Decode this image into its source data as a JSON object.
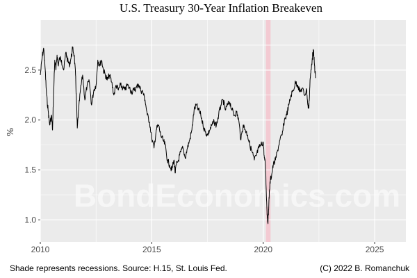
{
  "chart_data": {
    "type": "line",
    "title": "U.S. Treasury 30-Year Inflation Breakeven",
    "xlabel": "",
    "ylabel": "%",
    "xlim": [
      2010.0,
      2026.4
    ],
    "ylim": [
      0.78,
      3.0
    ],
    "x_ticks": [
      2010,
      2015,
      2020,
      2025
    ],
    "x_tick_labels": [
      "2010",
      "2015",
      "2020",
      "2025"
    ],
    "y_ticks": [
      1.0,
      1.5,
      2.0,
      2.5
    ],
    "y_tick_labels": [
      "1.0",
      "1.5",
      "2.0",
      "2.5"
    ],
    "grid": true,
    "background_color": "#ebebeb",
    "line_color": "#000000",
    "recession_color": "#f4c6cf",
    "recession_shading": [
      {
        "start": 2020.12,
        "end": 2020.33
      }
    ],
    "series": [
      {
        "x": [
          2010.0,
          2010.08,
          2010.15,
          2010.22,
          2010.28,
          2010.35,
          2010.42,
          2010.5,
          2010.55,
          2010.6,
          2010.65,
          2010.7,
          2010.75,
          2010.8,
          2010.87,
          2010.95,
          2011.05,
          2011.15,
          2011.22,
          2011.3,
          2011.38,
          2011.45,
          2011.52,
          2011.58,
          2011.62,
          2011.66,
          2011.72,
          2011.8,
          2011.9,
          2012.0,
          2012.1,
          2012.2,
          2012.3,
          2012.4,
          2012.5,
          2012.58,
          2012.66,
          2012.75,
          2012.83,
          2012.92,
          2013.0,
          2013.1,
          2013.2,
          2013.3,
          2013.4,
          2013.5,
          2013.6,
          2013.7,
          2013.8,
          2013.9,
          2014.0,
          2014.1,
          2014.2,
          2014.3,
          2014.4,
          2014.5,
          2014.6,
          2014.7,
          2014.8,
          2014.9,
          2015.0,
          2015.1,
          2015.2,
          2015.3,
          2015.4,
          2015.5,
          2015.6,
          2015.7,
          2015.8,
          2015.9,
          2016.0,
          2016.05,
          2016.1,
          2016.2,
          2016.3,
          2016.4,
          2016.5,
          2016.6,
          2016.7,
          2016.8,
          2016.9,
          2017.0,
          2017.1,
          2017.2,
          2017.3,
          2017.4,
          2017.5,
          2017.6,
          2017.7,
          2017.8,
          2017.9,
          2018.0,
          2018.1,
          2018.2,
          2018.3,
          2018.4,
          2018.5,
          2018.6,
          2018.7,
          2018.8,
          2018.9,
          2019.0,
          2019.1,
          2019.2,
          2019.3,
          2019.4,
          2019.5,
          2019.6,
          2019.7,
          2019.8,
          2019.9,
          2020.0,
          2020.05,
          2020.1,
          2020.15,
          2020.18,
          2020.21,
          2020.24,
          2020.28,
          2020.32,
          2020.38,
          2020.45,
          2020.55,
          2020.65,
          2020.75,
          2020.85,
          2020.95,
          2021.05,
          2021.15,
          2021.25,
          2021.35,
          2021.45,
          2021.55,
          2021.65,
          2021.75,
          2021.85,
          2021.95,
          2022.0,
          2022.05,
          2022.1,
          2022.15,
          2022.2,
          2022.25,
          2022.3,
          2022.35
        ],
        "y": [
          2.45,
          2.62,
          2.72,
          2.5,
          2.25,
          2.1,
          1.95,
          2.05,
          1.9,
          2.3,
          2.6,
          2.5,
          2.65,
          2.55,
          2.62,
          2.6,
          2.5,
          2.68,
          2.6,
          2.55,
          2.62,
          2.72,
          2.65,
          2.45,
          2.2,
          1.92,
          2.1,
          2.3,
          2.45,
          2.2,
          2.35,
          2.38,
          2.15,
          2.3,
          2.35,
          2.6,
          2.55,
          2.6,
          2.5,
          2.45,
          2.4,
          2.45,
          2.38,
          2.25,
          2.35,
          2.3,
          2.35,
          2.32,
          2.3,
          2.35,
          2.32,
          2.28,
          2.3,
          2.32,
          2.36,
          2.3,
          2.28,
          2.2,
          2.05,
          1.98,
          1.82,
          1.72,
          1.9,
          1.95,
          1.85,
          1.8,
          1.75,
          1.6,
          1.55,
          1.5,
          1.6,
          1.47,
          1.55,
          1.6,
          1.68,
          1.72,
          1.62,
          1.72,
          1.8,
          1.9,
          2.1,
          2.15,
          2.1,
          2.05,
          1.95,
          1.88,
          1.85,
          1.9,
          1.95,
          1.98,
          1.95,
          2.05,
          2.15,
          2.2,
          2.1,
          2.15,
          2.18,
          2.1,
          2.05,
          2.08,
          2.0,
          1.8,
          1.95,
          1.9,
          1.85,
          1.75,
          1.68,
          1.6,
          1.65,
          1.72,
          1.75,
          1.78,
          1.62,
          1.55,
          1.2,
          1.05,
          0.97,
          1.1,
          1.3,
          1.4,
          1.45,
          1.55,
          1.6,
          1.7,
          1.8,
          1.85,
          2.0,
          2.05,
          2.15,
          2.25,
          2.3,
          2.38,
          2.35,
          2.28,
          2.32,
          2.25,
          2.3,
          2.15,
          2.12,
          2.4,
          2.5,
          2.62,
          2.7,
          2.55,
          2.42
        ]
      }
    ],
    "annotations": [
      "BondEconomics.com"
    ],
    "caption_left": "Shade represents recessions. Source: H.15, St. Louis Fed.",
    "caption_right": "(C) 2022 B. Romanchuk"
  }
}
